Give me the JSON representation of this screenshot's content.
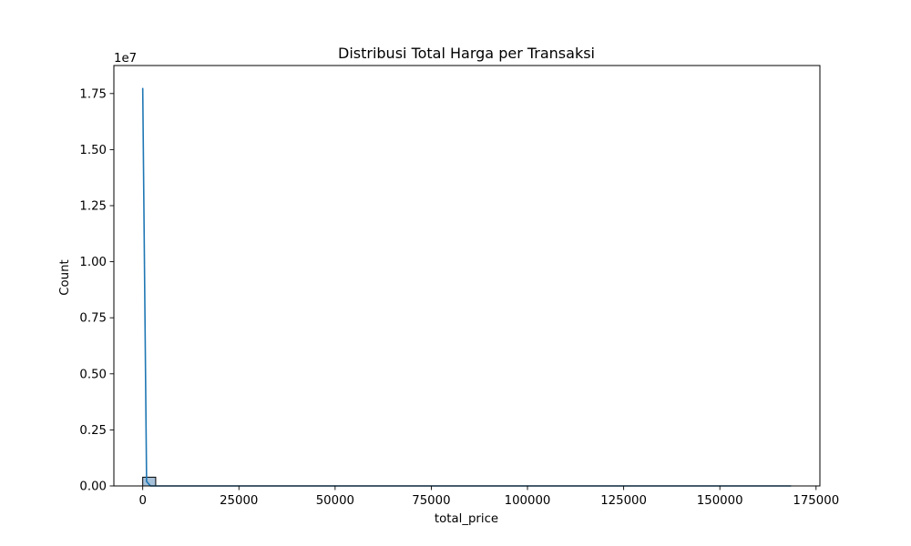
{
  "chart_data": {
    "type": "bar",
    "title": "Distribusi Total Harga per Transaksi",
    "xlabel": "total_price",
    "ylabel": "Count",
    "y_offset_label": "1e7",
    "xlim": [
      -7500,
      176000
    ],
    "ylim": [
      0,
      18750000
    ],
    "x_ticks": [
      0,
      25000,
      50000,
      75000,
      100000,
      125000,
      150000,
      175000
    ],
    "x_tick_labels": [
      "0",
      "25000",
      "50000",
      "75000",
      "100000",
      "125000",
      "150000",
      "175000"
    ],
    "y_ticks": [
      0,
      2500000,
      5000000,
      7500000,
      10000000,
      12500000,
      15000000,
      17500000
    ],
    "y_tick_labels": [
      "0.00",
      "0.25",
      "0.50",
      "0.75",
      "1.00",
      "1.25",
      "1.50",
      "1.75"
    ],
    "bins": [
      {
        "x0": 0,
        "x1": 3370,
        "count": 390000
      },
      {
        "x0": 3370,
        "x1": 168500,
        "count": 0
      }
    ],
    "kde": [
      {
        "x": 0,
        "y": 17750000
      },
      {
        "x": 1000,
        "y": 200000
      },
      {
        "x": 2000,
        "y": 0
      },
      {
        "x": 168500,
        "y": 0
      }
    ],
    "grid": false,
    "colors": {
      "bar_fill": "#a6c1d9",
      "bar_edge": "#000000",
      "kde_line": "#1f77b4"
    }
  }
}
